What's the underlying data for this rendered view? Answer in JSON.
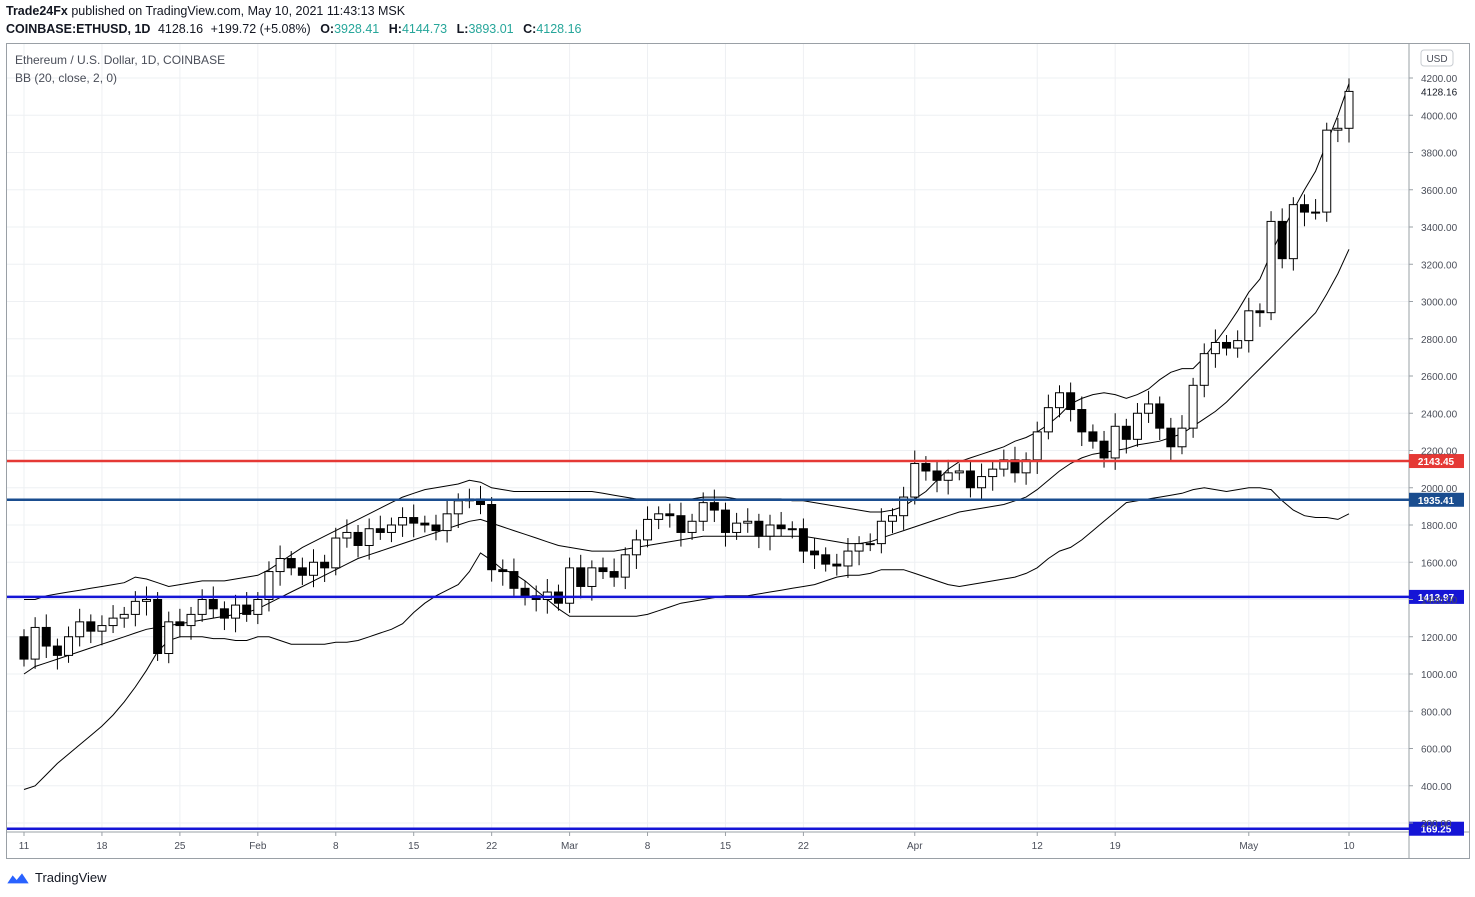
{
  "header": {
    "publisher": "Trade24Fx",
    "published_text": "published on TradingView.com, May 10, 2021 11:43:13 MSK",
    "symbol": "COINBASE:ETHUSD, 1D",
    "last": "4128.16",
    "change": "+199.72 (+5.08%)",
    "o_label": "O:",
    "o": "3928.41",
    "h_label": "H:",
    "h": "4144.73",
    "l_label": "L:",
    "l": "3893.01",
    "c_label": "C:",
    "c": "4128.16"
  },
  "legend": {
    "title": "Ethereum / U.S. Dollar, 1D, COINBASE",
    "indicator": "BB (20, close, 2, 0)"
  },
  "currency_badge": "USD",
  "footer": {
    "brand": "TradingView"
  },
  "colors": {
    "up_body": "#ffffff",
    "down_body": "#000000",
    "wick": "#000000",
    "bb_line": "#000000",
    "level_red": "#e53935",
    "level_blue_dark": "#1a4d8f",
    "level_blue": "#1515d6",
    "price_up": "#26a69a",
    "grid": "#eef0f3"
  },
  "chart_data": {
    "type": "candlestick",
    "ylim": [
      100,
      4300
    ],
    "y_ticks": [
      200,
      400,
      600,
      800,
      1000,
      1200,
      1400,
      1600,
      1800,
      2000,
      2200,
      2400,
      2600,
      2800,
      3000,
      3200,
      3400,
      3600,
      3800,
      4000,
      4200
    ],
    "x_ticks": [
      {
        "day": 0,
        "label": "11"
      },
      {
        "day": 7,
        "label": "18"
      },
      {
        "day": 14,
        "label": "25"
      },
      {
        "day": 21,
        "label": "Feb"
      },
      {
        "day": 28,
        "label": "8"
      },
      {
        "day": 35,
        "label": "15"
      },
      {
        "day": 42,
        "label": "22"
      },
      {
        "day": 49,
        "label": "Mar"
      },
      {
        "day": 56,
        "label": "8"
      },
      {
        "day": 63,
        "label": "15"
      },
      {
        "day": 70,
        "label": "22"
      },
      {
        "day": 80,
        "label": "Apr"
      },
      {
        "day": 91,
        "label": "12"
      },
      {
        "day": 98,
        "label": "19"
      },
      {
        "day": 110,
        "label": "May"
      },
      {
        "day": 119,
        "label": "10"
      }
    ],
    "last_price_label": "4128.16",
    "levels": [
      {
        "value": 2143.45,
        "label": "2143.45",
        "color": "red"
      },
      {
        "value": 1935.41,
        "label": "1935.41",
        "color": "dark-blue"
      },
      {
        "value": 1413.97,
        "label": "1413.97",
        "color": "blue"
      },
      {
        "value": 169.25,
        "label": "169.25",
        "color": "blue"
      }
    ],
    "closes": [
      1080,
      1250,
      1150,
      1100,
      1200,
      1280,
      1230,
      1260,
      1300,
      1320,
      1390,
      1400,
      1110,
      1280,
      1260,
      1320,
      1400,
      1350,
      1300,
      1370,
      1320,
      1400,
      1550,
      1620,
      1570,
      1530,
      1600,
      1570,
      1730,
      1760,
      1690,
      1780,
      1760,
      1800,
      1840,
      1810,
      1800,
      1770,
      1860,
      1930,
      1940,
      1910,
      1560,
      1550,
      1460,
      1420,
      1400,
      1440,
      1380,
      1570,
      1470,
      1570,
      1550,
      1520,
      1640,
      1720,
      1830,
      1860,
      1850,
      1760,
      1820,
      1920,
      1880,
      1760,
      1810,
      1820,
      1740,
      1800,
      1780,
      1780,
      1660,
      1640,
      1590,
      1580,
      1660,
      1700,
      1700,
      1820,
      1850,
      1950,
      2130,
      2090,
      2040,
      2080,
      2090,
      2000,
      2060,
      2100,
      2150,
      2080,
      2150,
      2300,
      2430,
      2510,
      2420,
      2300,
      2250,
      2160,
      2330,
      2260,
      2400,
      2450,
      2320,
      2220,
      2320,
      2550,
      2720,
      2780,
      2750,
      2790,
      2950,
      2940,
      3430,
      3230,
      3520,
      3480,
      3480,
      3920,
      3930,
      4128
    ],
    "bb_upper": [
      1400,
      1400,
      1420,
      1430,
      1440,
      1450,
      1460,
      1470,
      1480,
      1490,
      1520,
      1510,
      1490,
      1470,
      1480,
      1490,
      1500,
      1500,
      1500,
      1510,
      1520,
      1530,
      1560,
      1600,
      1640,
      1680,
      1710,
      1740,
      1770,
      1800,
      1830,
      1860,
      1890,
      1920,
      1950,
      1970,
      1990,
      2000,
      2010,
      2020,
      2040,
      2030,
      2000,
      1990,
      1980,
      1980,
      1980,
      1980,
      1980,
      1980,
      1980,
      1980,
      1970,
      1960,
      1950,
      1940,
      1940,
      1940,
      1940,
      1940,
      1940,
      1950,
      1950,
      1950,
      1940,
      1940,
      1940,
      1940,
      1940,
      1930,
      1930,
      1920,
      1910,
      1900,
      1890,
      1880,
      1870,
      1870,
      1880,
      1900,
      1940,
      1980,
      2040,
      2100,
      2140,
      2160,
      2180,
      2200,
      2220,
      2250,
      2270,
      2300,
      2340,
      2390,
      2450,
      2480,
      2500,
      2510,
      2500,
      2480,
      2500,
      2530,
      2580,
      2620,
      2640,
      2640,
      2700,
      2780,
      2860,
      2950,
      3050,
      3120,
      3260,
      3380,
      3490,
      3600,
      3700,
      3850,
      4000,
      4170
    ],
    "bb_middle": [
      1000,
      1040,
      1060,
      1080,
      1100,
      1120,
      1140,
      1160,
      1180,
      1200,
      1220,
      1240,
      1250,
      1260,
      1270,
      1280,
      1290,
      1300,
      1310,
      1320,
      1330,
      1350,
      1380,
      1410,
      1440,
      1470,
      1500,
      1530,
      1560,
      1590,
      1620,
      1640,
      1660,
      1680,
      1700,
      1720,
      1740,
      1760,
      1780,
      1800,
      1820,
      1830,
      1810,
      1790,
      1770,
      1750,
      1730,
      1710,
      1690,
      1680,
      1670,
      1660,
      1660,
      1660,
      1670,
      1680,
      1690,
      1700,
      1710,
      1720,
      1730,
      1740,
      1740,
      1740,
      1740,
      1740,
      1740,
      1740,
      1740,
      1740,
      1740,
      1730,
      1720,
      1710,
      1700,
      1700,
      1710,
      1730,
      1750,
      1770,
      1790,
      1810,
      1830,
      1850,
      1870,
      1880,
      1890,
      1900,
      1910,
      1930,
      1950,
      1990,
      2040,
      2090,
      2130,
      2160,
      2180,
      2190,
      2200,
      2210,
      2230,
      2240,
      2250,
      2270,
      2290,
      2330,
      2370,
      2410,
      2460,
      2520,
      2580,
      2640,
      2700,
      2760,
      2820,
      2880,
      2940,
      3040,
      3150,
      3280
    ],
    "bb_lower": [
      380,
      400,
      460,
      520,
      570,
      620,
      670,
      720,
      780,
      850,
      930,
      1020,
      1120,
      1180,
      1200,
      1200,
      1200,
      1190,
      1190,
      1180,
      1180,
      1200,
      1200,
      1180,
      1160,
      1160,
      1160,
      1160,
      1170,
      1170,
      1180,
      1200,
      1220,
      1240,
      1270,
      1330,
      1380,
      1420,
      1450,
      1480,
      1550,
      1650,
      1610,
      1560,
      1540,
      1500,
      1450,
      1400,
      1350,
      1310,
      1310,
      1310,
      1310,
      1310,
      1310,
      1310,
      1320,
      1340,
      1360,
      1380,
      1390,
      1400,
      1410,
      1420,
      1420,
      1420,
      1430,
      1440,
      1450,
      1460,
      1470,
      1480,
      1500,
      1520,
      1530,
      1530,
      1540,
      1560,
      1560,
      1560,
      1540,
      1520,
      1500,
      1480,
      1470,
      1480,
      1490,
      1500,
      1510,
      1520,
      1540,
      1570,
      1620,
      1660,
      1680,
      1720,
      1770,
      1820,
      1870,
      1920,
      1930,
      1940,
      1950,
      1960,
      1970,
      1990,
      2000,
      1990,
      1980,
      1990,
      2000,
      2000,
      1990,
      1930,
      1880,
      1850,
      1840,
      1840,
      1830,
      1860
    ]
  }
}
